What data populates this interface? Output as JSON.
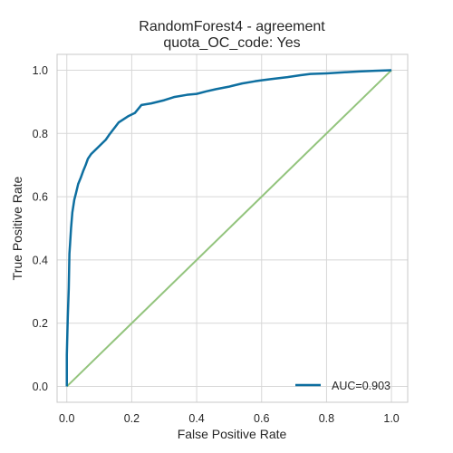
{
  "chart_data": {
    "type": "line",
    "title": [
      "RandomForest4 - agreement",
      "quota_OC_code: Yes"
    ],
    "xlabel": "False Positive Rate",
    "ylabel": "True Positive Rate",
    "xlim": [
      -0.03,
      1.05
    ],
    "ylim": [
      -0.05,
      1.05
    ],
    "xticks": [
      "0.0",
      "0.2",
      "0.4",
      "0.6",
      "0.8",
      "1.0"
    ],
    "yticks": [
      "0.0",
      "0.2",
      "0.4",
      "0.6",
      "0.8",
      "1.0"
    ],
    "grid": true,
    "legend_position": "bottom-right",
    "series": [
      {
        "name": "AUC=0.903",
        "color": "#0e6fa0",
        "x": [
          0.0,
          0.0,
          0.003,
          0.006,
          0.008,
          0.01,
          0.013,
          0.017,
          0.02,
          0.023,
          0.028,
          0.035,
          0.043,
          0.05,
          0.058,
          0.065,
          0.075,
          0.085,
          0.095,
          0.105,
          0.12,
          0.13,
          0.145,
          0.16,
          0.175,
          0.19,
          0.21,
          0.23,
          0.26,
          0.28,
          0.3,
          0.33,
          0.37,
          0.4,
          0.43,
          0.46,
          0.5,
          0.54,
          0.58,
          0.6,
          0.63,
          0.68,
          0.72,
          0.75,
          0.8,
          0.85,
          0.9,
          0.95,
          1.0
        ],
        "y": [
          0.0,
          0.1,
          0.22,
          0.31,
          0.42,
          0.45,
          0.5,
          0.55,
          0.57,
          0.59,
          0.61,
          0.64,
          0.66,
          0.68,
          0.7,
          0.72,
          0.735,
          0.745,
          0.755,
          0.765,
          0.78,
          0.795,
          0.815,
          0.835,
          0.845,
          0.855,
          0.865,
          0.89,
          0.895,
          0.9,
          0.905,
          0.915,
          0.922,
          0.925,
          0.933,
          0.94,
          0.948,
          0.958,
          0.965,
          0.968,
          0.972,
          0.978,
          0.984,
          0.988,
          0.99,
          0.993,
          0.996,
          0.998,
          1.0
        ]
      },
      {
        "name": "",
        "color": "#93c47d",
        "x": [
          0.0,
          1.0
        ],
        "y": [
          0.0,
          1.0
        ]
      }
    ],
    "colors": {
      "grid": "#d7d7d7",
      "frame": "#c8c8c8",
      "roc": "#0e6fa0",
      "diagonal": "#93c47d"
    }
  }
}
